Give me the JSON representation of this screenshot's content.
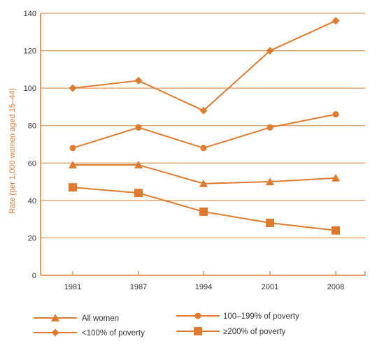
{
  "chart_data": {
    "type": "line",
    "x": [
      "1981",
      "1987",
      "1994",
      "2001",
      "2008"
    ],
    "ylabel": "Rate (per 1,000 women aged 15–44)",
    "ylim": [
      0,
      140
    ],
    "yticks": [
      0,
      20,
      40,
      60,
      80,
      100,
      120,
      140
    ],
    "grid": true,
    "legend_position": "bottom",
    "color": "#e07a2e",
    "series": [
      {
        "name": "All women",
        "marker": "triangle",
        "values": [
          59,
          59,
          49,
          50,
          52
        ]
      },
      {
        "name": "100–199% of poverty",
        "marker": "circle",
        "values": [
          68,
          79,
          68,
          79,
          86
        ]
      },
      {
        "name": "<100% of poverty",
        "marker": "diamond",
        "values": [
          100,
          104,
          88,
          120,
          136
        ]
      },
      {
        "name": "≥200% of poverty",
        "marker": "square",
        "values": [
          47,
          44,
          34,
          28,
          24
        ]
      }
    ]
  }
}
